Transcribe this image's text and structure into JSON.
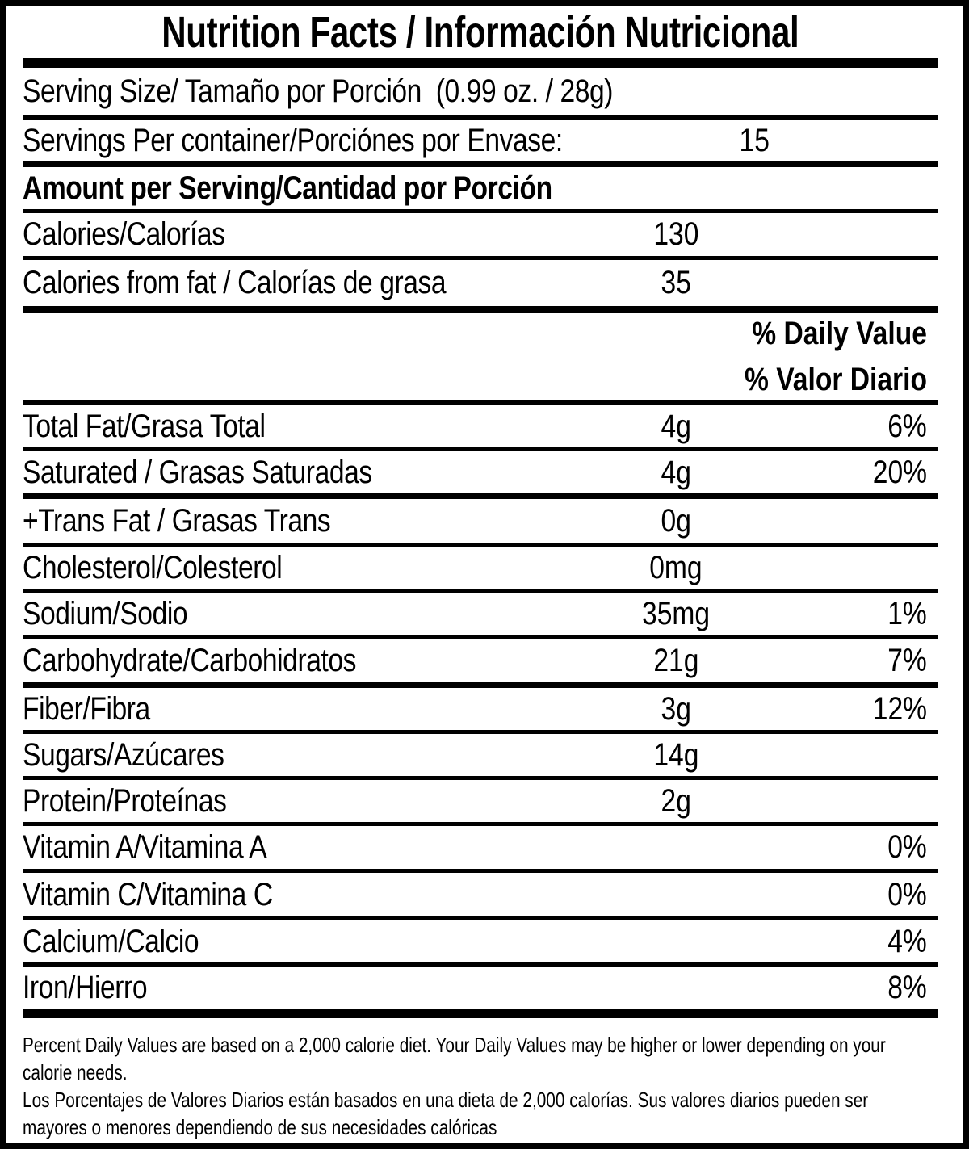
{
  "title": "Nutrition Facts / Información Nutricional",
  "serving": {
    "serving_size": "Serving Size/ Tamaño por Porción  (0.99 oz. / 28g)",
    "servings_per_container_label": "Servings Per container/Porciónes por Envase:",
    "servings_per_container_value": "15"
  },
  "amount_header": "Amount per Serving/Cantidad por Porción",
  "calories": {
    "label": "Calories/Calorías",
    "value": "130"
  },
  "calories_from_fat": {
    "label": "Calories from fat / Calorías de grasa",
    "value": "35"
  },
  "daily_value_header": {
    "en": "% Daily Value",
    "es": "% Valor Diario"
  },
  "nutrients": [
    {
      "label": "Total Fat/Grasa Total",
      "amount": "4g",
      "dv": "6%"
    },
    {
      "label": "Saturated / Grasas Saturadas",
      "amount": "4g",
      "dv": "20%"
    },
    {
      "label": "+Trans Fat / Grasas Trans",
      "amount": "0g",
      "dv": ""
    },
    {
      "label": "Cholesterol/Colesterol",
      "amount": "0mg",
      "dv": ""
    },
    {
      "label": "Sodium/Sodio",
      "amount": "35mg",
      "dv": "1%"
    },
    {
      "label": "Carbohydrate/Carbohidratos",
      "amount": "21g",
      "dv": "7%"
    },
    {
      "label": "Fiber/Fibra",
      "amount": "3g",
      "dv": "12%"
    },
    {
      "label": "Sugars/Azúcares",
      "amount": "14g",
      "dv": ""
    },
    {
      "label": "Protein/Proteínas",
      "amount": "2g",
      "dv": ""
    },
    {
      "label": "Vitamin A/Vitamina A",
      "amount": "",
      "dv": "0%"
    },
    {
      "label": "Vitamin C/Vitamina C",
      "amount": "",
      "dv": "0%"
    },
    {
      "label": "Calcium/Calcio",
      "amount": "",
      "dv": "4%"
    },
    {
      "label": "Iron/Hierro",
      "amount": "",
      "dv": "8%"
    }
  ],
  "footnote": {
    "lines": [
      "Percent Daily Values are based on a 2,000 calorie diet. Your Daily Values may be higher or lower depending on your",
      "calorie needs.",
      "Los Porcentajes de Valores Diarios están basados en una dieta de 2,000 calorías. Sus valores diarios pueden ser",
      "mayores o menores dependiendo de sus necesidades calóricas"
    ]
  }
}
